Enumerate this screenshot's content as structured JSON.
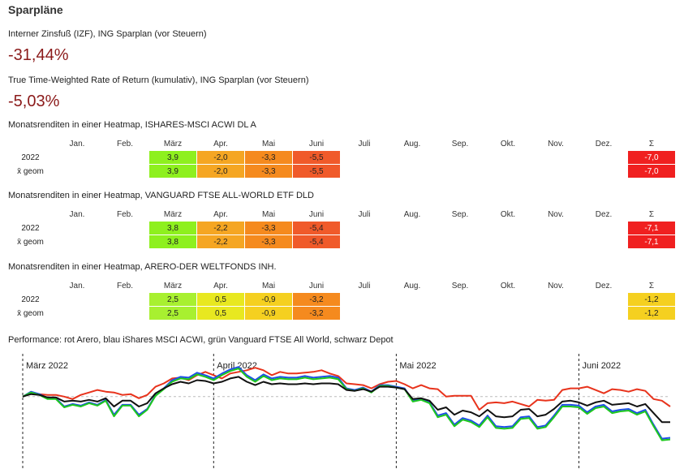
{
  "title": "Sparpläne",
  "izf": {
    "label": "Interner Zinsfuß (IZF), ING Sparplan (vor Steuern)",
    "value": "-31,44%"
  },
  "ttwror": {
    "label": "True Time-Weighted Rate of Return (kumulativ), ING Sparplan (vor Steuern)",
    "value": "-5,03%"
  },
  "months": [
    "Jan.",
    "Feb.",
    "März",
    "Apr.",
    "Mai",
    "Juni",
    "Juli",
    "Aug.",
    "Sep.",
    "Okt.",
    "Nov.",
    "Dez."
  ],
  "sum_label": "Σ",
  "heatmaps": [
    {
      "title": "Monatsrenditen in einer Heatmap, ISHARES-MSCI ACWI DL A",
      "rows": [
        {
          "label": "2022",
          "cells": [
            "",
            "",
            "3,9",
            "-2,0",
            "-3,3",
            "-5,5",
            "",
            "",
            "",
            "",
            "",
            ""
          ],
          "colors": [
            "",
            "",
            "#8ef01e",
            "#f5a623",
            "#f58a1e",
            "#f05a2a",
            "",
            "",
            "",
            "",
            "",
            ""
          ],
          "sum": "-7,0",
          "sum_color": "#f02020"
        },
        {
          "label": "x̄ geom",
          "cells": [
            "",
            "",
            "3,9",
            "-2,0",
            "-3,3",
            "-5,5",
            "",
            "",
            "",
            "",
            "",
            ""
          ],
          "colors": [
            "",
            "",
            "#8ef01e",
            "#f5a623",
            "#f58a1e",
            "#f05a2a",
            "",
            "",
            "",
            "",
            "",
            ""
          ],
          "sum": "-7,0",
          "sum_color": "#f02020"
        }
      ]
    },
    {
      "title": "Monatsrenditen in einer Heatmap, VANGUARD FTSE ALL-WORLD ETF DLD",
      "rows": [
        {
          "label": "2022",
          "cells": [
            "",
            "",
            "3,8",
            "-2,2",
            "-3,3",
            "-5,4",
            "",
            "",
            "",
            "",
            "",
            ""
          ],
          "colors": [
            "",
            "",
            "#8ef01e",
            "#f5a623",
            "#f58a1e",
            "#f05a2a",
            "",
            "",
            "",
            "",
            "",
            ""
          ],
          "sum": "-7,1",
          "sum_color": "#f02020"
        },
        {
          "label": "x̄ geom",
          "cells": [
            "",
            "",
            "3,8",
            "-2,2",
            "-3,3",
            "-5,4",
            "",
            "",
            "",
            "",
            "",
            ""
          ],
          "colors": [
            "",
            "",
            "#8ef01e",
            "#f5a623",
            "#f58a1e",
            "#f05a2a",
            "",
            "",
            "",
            "",
            "",
            ""
          ],
          "sum": "-7,1",
          "sum_color": "#f02020"
        }
      ]
    },
    {
      "title": "Monatsrenditen in einer Heatmap, ARERO-DER WELTFONDS INH.",
      "rows": [
        {
          "label": "2022",
          "cells": [
            "",
            "",
            "2,5",
            "0,5",
            "-0,9",
            "-3,2",
            "",
            "",
            "",
            "",
            "",
            ""
          ],
          "colors": [
            "",
            "",
            "#a8f030",
            "#e8e820",
            "#f5d020",
            "#f58a1e",
            "",
            "",
            "",
            "",
            "",
            ""
          ],
          "sum": "-1,2",
          "sum_color": "#f5d020"
        },
        {
          "label": "x̄ geom",
          "cells": [
            "",
            "",
            "2,5",
            "0,5",
            "-0,9",
            "-3,2",
            "",
            "",
            "",
            "",
            "",
            ""
          ],
          "colors": [
            "",
            "",
            "#a8f030",
            "#e8e820",
            "#f5d020",
            "#f58a1e",
            "",
            "",
            "",
            "",
            "",
            ""
          ],
          "sum": "-1,2",
          "sum_color": "#f5d020"
        }
      ]
    }
  ],
  "performance_label": "Performance: rot Arero, blau iShares MSCI ACWI, grün Vanguard FTSE All World, schwarz Depot",
  "chart_data": {
    "type": "line",
    "title": "Performance: rot Arero, blau iShares MSCI ACWI, grün Vanguard FTSE All World, schwarz Depot",
    "month_labels": [
      "März 2022",
      "April 2022",
      "Mai 2022",
      "Juni 2022"
    ],
    "month_starts": [
      0,
      23,
      45,
      67
    ],
    "ylim": [
      -8,
      5
    ],
    "baseline": 0,
    "series": [
      {
        "name": "Arero",
        "color": "#e8331c",
        "values": [
          0,
          0.5,
          0.3,
          0.2,
          0.2,
          0.0,
          -0.3,
          0.2,
          0.5,
          0.8,
          0.6,
          0.5,
          0.2,
          0.3,
          -0.2,
          0.2,
          1.2,
          1.6,
          2.2,
          2.3,
          2.0,
          2.6,
          3.0,
          2.6,
          2.2,
          2.8,
          3.0,
          3.2,
          3.5,
          3.2,
          2.6,
          3.0,
          2.8,
          2.8,
          2.9,
          3.0,
          3.2,
          2.8,
          2.5,
          1.6,
          1.5,
          1.4,
          1.0,
          1.5,
          1.8,
          1.9,
          1.5,
          1.0,
          1.4,
          1.0,
          0.9,
          0.0,
          0.1,
          0.1,
          0.1,
          -1.6,
          -0.8,
          -0.7,
          -0.8,
          -0.6,
          -0.9,
          -1.2,
          -0.4,
          -0.5,
          -0.4,
          0.8,
          1.0,
          1.0,
          1.2,
          0.8,
          0.4,
          0.9,
          0.8,
          0.6,
          0.9,
          0.7,
          -0.3,
          -0.5,
          -1.2
        ]
      },
      {
        "name": "iShares MSCI ACWI",
        "color": "#1e4ee8",
        "values": [
          0,
          0.6,
          0.3,
          -0.2,
          -0.2,
          -1.2,
          -0.9,
          -1.1,
          -0.7,
          -1.0,
          -0.4,
          -2.2,
          -1.0,
          -1.0,
          -2.2,
          -1.5,
          0.2,
          1.0,
          2.0,
          2.4,
          2.3,
          2.9,
          2.6,
          2.2,
          2.8,
          3.3,
          3.6,
          2.6,
          2.0,
          2.7,
          2.2,
          2.4,
          2.3,
          2.3,
          2.5,
          2.3,
          2.4,
          2.5,
          2.3,
          1.0,
          0.8,
          1.1,
          0.6,
          1.4,
          1.4,
          1.2,
          1.0,
          -0.5,
          -0.3,
          -0.7,
          -2.3,
          -2.0,
          -3.4,
          -2.6,
          -2.9,
          -3.5,
          -2.3,
          -3.6,
          -3.7,
          -3.6,
          -2.5,
          -2.4,
          -3.7,
          -3.5,
          -2.3,
          -1.0,
          -1.0,
          -1.1,
          -1.9,
          -1.2,
          -1.0,
          -1.8,
          -1.6,
          -1.5,
          -2.0,
          -1.6,
          -3.4,
          -5.1,
          -5.0
        ]
      },
      {
        "name": "Vanguard FTSE All World",
        "color": "#1ec81e",
        "values": [
          0,
          0.5,
          0.2,
          -0.3,
          -0.3,
          -1.3,
          -1.0,
          -1.2,
          -0.8,
          -1.1,
          -0.5,
          -2.4,
          -1.1,
          -1.1,
          -2.4,
          -1.6,
          0.1,
          0.9,
          1.8,
          2.2,
          2.1,
          2.7,
          2.4,
          2.0,
          2.6,
          3.1,
          3.4,
          2.4,
          1.8,
          2.5,
          2.0,
          2.2,
          2.1,
          2.1,
          2.3,
          2.1,
          2.2,
          2.3,
          2.1,
          0.9,
          0.7,
          1.0,
          0.5,
          1.3,
          1.3,
          1.1,
          0.9,
          -0.6,
          -0.4,
          -0.8,
          -2.5,
          -2.2,
          -3.6,
          -2.8,
          -3.1,
          -3.7,
          -2.5,
          -3.8,
          -3.9,
          -3.8,
          -2.7,
          -2.6,
          -3.9,
          -3.7,
          -2.5,
          -1.2,
          -1.2,
          -1.3,
          -2.1,
          -1.4,
          -1.2,
          -2.0,
          -1.8,
          -1.7,
          -2.2,
          -1.8,
          -3.6,
          -5.3,
          -5.2
        ]
      },
      {
        "name": "Depot",
        "color": "#111111",
        "values": [
          0,
          0.3,
          0.2,
          -0.1,
          -0.1,
          -0.6,
          -0.5,
          -0.6,
          -0.4,
          -0.6,
          -0.2,
          -1.2,
          -0.5,
          -0.5,
          -1.2,
          -0.8,
          0.4,
          1.0,
          1.5,
          1.8,
          1.6,
          2.0,
          1.9,
          1.6,
          1.8,
          2.2,
          2.4,
          1.8,
          1.4,
          1.8,
          1.5,
          1.6,
          1.5,
          1.5,
          1.6,
          1.5,
          1.6,
          1.6,
          1.5,
          0.8,
          0.7,
          0.9,
          0.6,
          1.2,
          1.2,
          1.1,
          0.9,
          -0.3,
          -0.2,
          -0.5,
          -1.6,
          -1.3,
          -2.2,
          -1.7,
          -1.9,
          -2.4,
          -1.6,
          -2.4,
          -2.5,
          -2.4,
          -1.6,
          -1.5,
          -2.4,
          -2.2,
          -1.5,
          -0.6,
          -0.5,
          -0.7,
          -1.1,
          -0.7,
          -0.5,
          -1.0,
          -0.9,
          -0.8,
          -1.2,
          -0.9,
          -2.0,
          -3.1,
          -3.1
        ]
      }
    ]
  }
}
